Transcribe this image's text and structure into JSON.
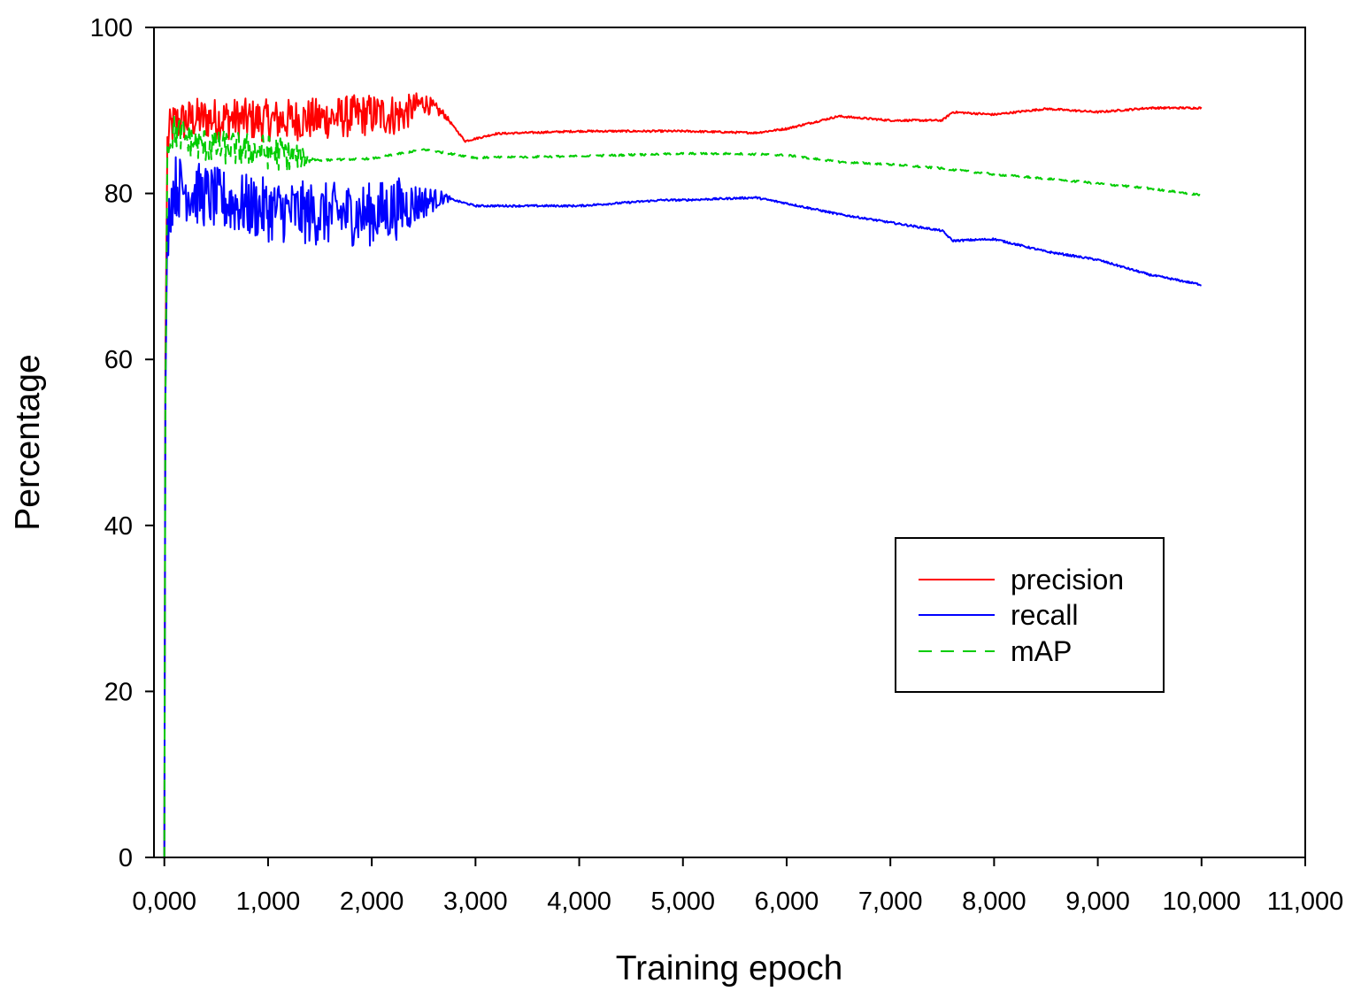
{
  "chart_data": {
    "type": "line",
    "title": "",
    "xlabel": "Training epoch",
    "ylabel": "Percentage",
    "xlim": [
      -100,
      11000
    ],
    "ylim": [
      0,
      100
    ],
    "xticks": [
      0,
      1000,
      2000,
      3000,
      4000,
      5000,
      6000,
      7000,
      8000,
      9000,
      10000,
      11000
    ],
    "xtick_labels": [
      "0,000",
      "1,000",
      "2,000",
      "3,000",
      "4,000",
      "5,000",
      "6,000",
      "7,000",
      "8,000",
      "9,000",
      "10,000",
      "11,000"
    ],
    "yticks": [
      0,
      20,
      40,
      60,
      80,
      100
    ],
    "ytick_labels": [
      "0",
      "20",
      "40",
      "60",
      "80",
      "100"
    ],
    "grid": false,
    "legend_position": "lower-right",
    "series": [
      {
        "name": "precision",
        "color": "#ff0000",
        "dash": "solid",
        "noise_until": 2800,
        "noise_amplitude": 1.6,
        "x": [
          0,
          10,
          30,
          60,
          100,
          300,
          600,
          1000,
          1500,
          2000,
          2300,
          2500,
          2700,
          2900,
          3200,
          4000,
          5000,
          5700,
          6000,
          6500,
          7000,
          7500,
          7600,
          8000,
          8500,
          9000,
          9500,
          10000
        ],
        "y": [
          0,
          60,
          86,
          88,
          88.5,
          89,
          89,
          88.8,
          89,
          89.5,
          89.5,
          91,
          89.5,
          86.3,
          87.2,
          87.5,
          87.5,
          87.3,
          87.8,
          89.3,
          88.8,
          88.8,
          89.8,
          89.5,
          90.2,
          89.8,
          90.3,
          90.3
        ]
      },
      {
        "name": "recall",
        "color": "#0000ff",
        "dash": "solid",
        "noise_until": 2800,
        "noise_amplitude": 2.4,
        "x": [
          0,
          10,
          30,
          60,
          100,
          300,
          600,
          1000,
          1500,
          2000,
          2500,
          2700,
          3000,
          4000,
          4800,
          5000,
          5700,
          6000,
          6500,
          7000,
          7500,
          7600,
          8000,
          8500,
          9000,
          9500,
          10000
        ],
        "y": [
          0,
          55,
          75,
          79,
          81,
          80,
          79,
          78,
          77.5,
          77.5,
          79,
          79.5,
          78.5,
          78.5,
          79.2,
          79.2,
          79.5,
          78.8,
          77.5,
          76.5,
          75.5,
          74.3,
          74.5,
          73,
          72,
          70.2,
          69
        ]
      },
      {
        "name": "mAP",
        "color": "#00cc00",
        "dash": "dashed",
        "noise_until": 1500,
        "noise_amplitude": 1.3,
        "x": [
          0,
          10,
          30,
          60,
          100,
          300,
          600,
          1000,
          1500,
          2000,
          2500,
          3000,
          4000,
          5000,
          5500,
          6000,
          6500,
          7000,
          7500,
          8000,
          8500,
          9000,
          9500,
          10000
        ],
        "y": [
          0,
          55,
          85,
          87,
          87.5,
          86,
          85.5,
          85,
          84,
          84.2,
          85.3,
          84.3,
          84.5,
          84.8,
          84.8,
          84.6,
          83.8,
          83.5,
          83,
          82.3,
          81.8,
          81.2,
          80.6,
          79.8
        ]
      }
    ]
  }
}
